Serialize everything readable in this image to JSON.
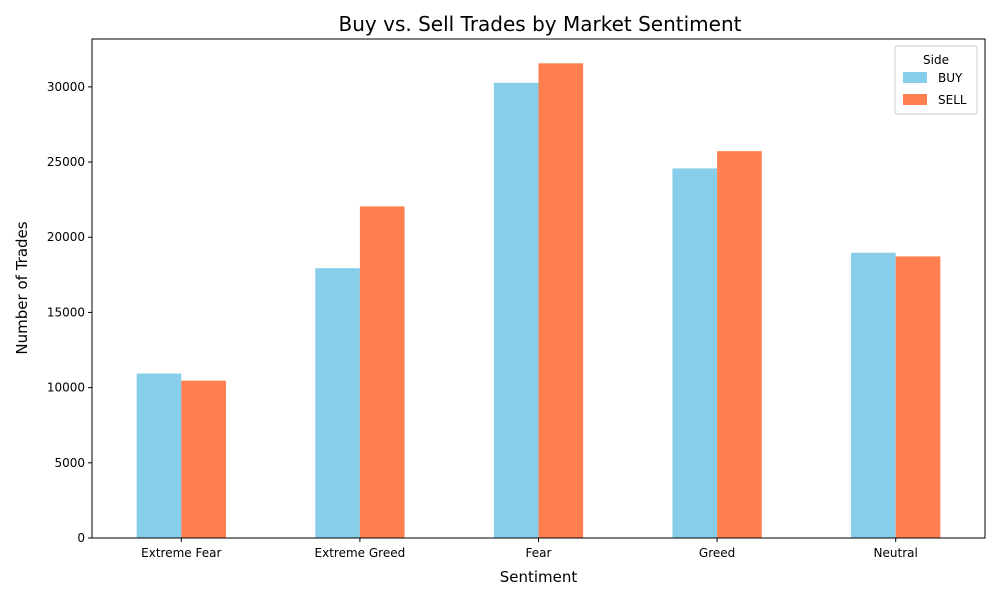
{
  "chart_data": {
    "type": "bar",
    "title": "Buy vs. Sell Trades by Market Sentiment",
    "xlabel": "Sentiment",
    "ylabel": "Number of Trades",
    "categories": [
      "Extreme Fear",
      "Extreme Greed",
      "Fear",
      "Greed",
      "Neutral"
    ],
    "series": [
      {
        "name": "BUY",
        "color": "#87CEEB",
        "values": [
          10935,
          17940,
          30270,
          24576,
          18969
        ]
      },
      {
        "name": "SELL",
        "color": "#FF7F50",
        "values": [
          10465,
          22052,
          31567,
          25727,
          18727
        ]
      }
    ],
    "ylim": [
      0,
      33183
    ],
    "yticks": [
      0,
      5000,
      10000,
      15000,
      20000,
      25000,
      30000
    ],
    "legend": {
      "title": "Side",
      "placement": "top-right"
    },
    "grid": false
  }
}
